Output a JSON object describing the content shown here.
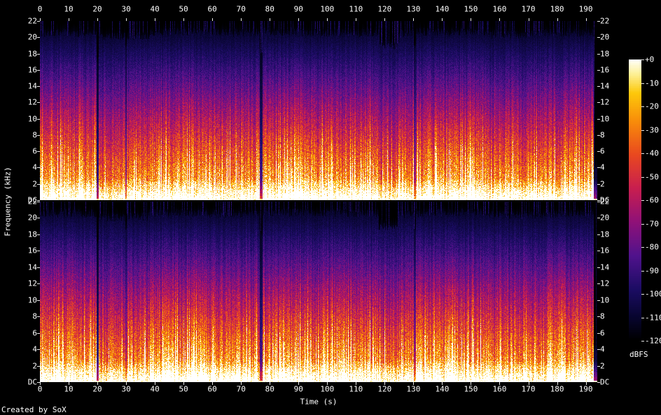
{
  "credit": "Created by SoX",
  "chart_data": {
    "type": "heatmap",
    "subtype": "stereo-spectrogram",
    "title": "",
    "xlabel": "Time (s)",
    "ylabel": "Frequency (kHz)",
    "x_range_s": [
      0,
      194
    ],
    "x_ticks": [
      0,
      10,
      20,
      30,
      40,
      50,
      60,
      70,
      80,
      90,
      100,
      110,
      120,
      130,
      140,
      150,
      160,
      170,
      180,
      190
    ],
    "y_range_khz": [
      0,
      22
    ],
    "y_ticks": [
      {
        "value": 22,
        "label": "22"
      },
      {
        "value": 20,
        "label": "20"
      },
      {
        "value": 18,
        "label": "18"
      },
      {
        "value": 16,
        "label": "16"
      },
      {
        "value": 14,
        "label": "14"
      },
      {
        "value": 12,
        "label": "12"
      },
      {
        "value": 10,
        "label": "10"
      },
      {
        "value": 8,
        "label": "8"
      },
      {
        "value": 6,
        "label": "6"
      },
      {
        "value": 4,
        "label": "4"
      },
      {
        "value": 2,
        "label": "2"
      },
      {
        "value": 0,
        "label": "DC"
      }
    ],
    "channels": [
      "left",
      "right"
    ],
    "colorbar": {
      "label": "dBFS",
      "range_db": [
        0,
        -120
      ],
      "ticks": [
        "+0",
        "-10",
        "-20",
        "-30",
        "-40",
        "-50",
        "-60",
        "-70",
        "-80",
        "-90",
        "-100",
        "-110",
        "-120"
      ]
    },
    "palette_stops": [
      {
        "pos": 0.0,
        "color": "#000000"
      },
      {
        "pos": 0.08,
        "color": "#07052e"
      },
      {
        "pos": 0.18,
        "color": "#1b0c63"
      },
      {
        "pos": 0.3,
        "color": "#50128c"
      },
      {
        "pos": 0.42,
        "color": "#8f1178"
      },
      {
        "pos": 0.54,
        "color": "#c81e4f"
      },
      {
        "pos": 0.66,
        "color": "#e9481f"
      },
      {
        "pos": 0.78,
        "color": "#f88d0a"
      },
      {
        "pos": 0.88,
        "color": "#fdc80a"
      },
      {
        "pos": 0.95,
        "color": "#fdf19a"
      },
      {
        "pos": 1.0,
        "color": "#ffffff"
      }
    ],
    "sections": [
      {
        "t0": 0.0,
        "t1": 19.6,
        "level": 0.96,
        "streak": 0.55,
        "fmax": 20.8
      },
      {
        "t0": 19.6,
        "t1": 20.4,
        "level": 0.3,
        "streak": 0.05,
        "fmax": 17.5
      },
      {
        "t0": 20.4,
        "t1": 29.6,
        "level": 0.86,
        "streak": 0.35,
        "fmax": 20.3
      },
      {
        "t0": 29.6,
        "t1": 30.2,
        "level": 0.55,
        "streak": 0.1,
        "fmax": 19.0
      },
      {
        "t0": 30.2,
        "t1": 38.0,
        "level": 0.88,
        "streak": 0.4,
        "fmax": 20.4
      },
      {
        "t0": 38.0,
        "t1": 58.0,
        "level": 0.95,
        "streak": 0.75,
        "fmax": 20.9
      },
      {
        "t0": 58.0,
        "t1": 76.6,
        "level": 0.92,
        "streak": 0.5,
        "fmax": 20.8
      },
      {
        "t0": 76.6,
        "t1": 77.4,
        "level": 0.34,
        "streak": 0.05,
        "fmax": 18.5
      },
      {
        "t0": 77.4,
        "t1": 95.0,
        "level": 0.95,
        "streak": 0.7,
        "fmax": 20.9
      },
      {
        "t0": 95.0,
        "t1": 118.0,
        "level": 0.92,
        "streak": 0.55,
        "fmax": 20.8
      },
      {
        "t0": 118.0,
        "t1": 125.0,
        "level": 0.84,
        "streak": 0.4,
        "fmax": 19.2
      },
      {
        "t0": 125.0,
        "t1": 130.2,
        "level": 0.9,
        "streak": 0.5,
        "fmax": 20.6
      },
      {
        "t0": 130.2,
        "t1": 130.8,
        "level": 0.55,
        "streak": 0.1,
        "fmax": 19.0
      },
      {
        "t0": 130.8,
        "t1": 155.0,
        "level": 0.95,
        "streak": 0.7,
        "fmax": 20.9
      },
      {
        "t0": 155.0,
        "t1": 176.0,
        "level": 0.9,
        "streak": 0.45,
        "fmax": 20.6
      },
      {
        "t0": 176.0,
        "t1": 193.0,
        "level": 0.94,
        "streak": 0.6,
        "fmax": 20.8
      },
      {
        "t0": 193.0,
        "t1": 194.0,
        "level": 0.12,
        "streak": 0.0,
        "fmax": 4.0
      }
    ]
  }
}
